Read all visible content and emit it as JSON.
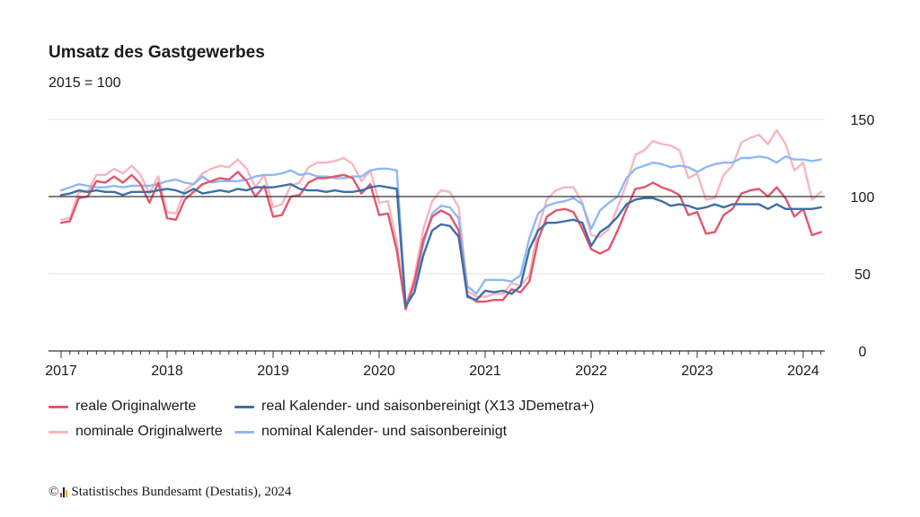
{
  "title": "Umsatz des Gastgewerbes",
  "subtitle": "2015 = 100",
  "footer": {
    "copyright_symbol": "©",
    "text": "Statistisches Bundesamt (Destatis), 2024"
  },
  "legend": [
    {
      "label": "reale Originalwerte",
      "color": "#e3566b"
    },
    {
      "label": "real Kalender- und saisonbereinigt (X13 JDemetra+)",
      "color": "#3d6ea8"
    },
    {
      "label": "nominale Originalwerte",
      "color": "#f8b6bf"
    },
    {
      "label": "nominal Kalender- und saisonbereinigt",
      "color": "#8fb8f5"
    }
  ],
  "chart_data": {
    "type": "line",
    "title": "Umsatz des Gastgewerbes",
    "subtitle": "2015 = 100",
    "x_start": "2017-01",
    "x_frequency": "monthly",
    "x_tick_labels": [
      "2017",
      "2018",
      "2019",
      "2020",
      "2021",
      "2022",
      "2023",
      "2024"
    ],
    "y_ticks": [
      0,
      50,
      100,
      150
    ],
    "ylim": [
      0,
      150
    ],
    "reference_line": 100,
    "grid": true,
    "legend_position": "bottom",
    "series": [
      {
        "name": "reale Originalwerte",
        "color": "#e3566b",
        "values": [
          83,
          84,
          99,
          100,
          110,
          109,
          113,
          109,
          114,
          108,
          96,
          109,
          86,
          85,
          98,
          103,
          108,
          110,
          112,
          111,
          116,
          110,
          100,
          107,
          87,
          88,
          100,
          101,
          109,
          112,
          112,
          113,
          114,
          112,
          102,
          108,
          88,
          89,
          65,
          27,
          45,
          72,
          87,
          91,
          88,
          78,
          36,
          32,
          32,
          33,
          33,
          40,
          38,
          45,
          72,
          87,
          91,
          92,
          90,
          79,
          66,
          63,
          66,
          78,
          92,
          105,
          106,
          109,
          106,
          104,
          101,
          88,
          90,
          76,
          77,
          88,
          92,
          102,
          104,
          105,
          100,
          106,
          99,
          87,
          92,
          75,
          77
        ]
      },
      {
        "name": "real Kalender- und saisonbereinigt (X13 JDemetra+)",
        "color": "#3d6ea8",
        "values": [
          101,
          102,
          104,
          103,
          104,
          103,
          103,
          101,
          103,
          103,
          103,
          104,
          105,
          104,
          102,
          105,
          102,
          103,
          104,
          103,
          105,
          104,
          106,
          106,
          106,
          107,
          108,
          105,
          104,
          104,
          103,
          104,
          103,
          103,
          104,
          106,
          107,
          106,
          105,
          29,
          38,
          62,
          78,
          82,
          81,
          74,
          35,
          33,
          39,
          38,
          39,
          37,
          42,
          66,
          78,
          83,
          83,
          84,
          85,
          83,
          68,
          77,
          81,
          87,
          95,
          98,
          99,
          99,
          97,
          94,
          95,
          94,
          92,
          93,
          95,
          93,
          95,
          95,
          95,
          95,
          92,
          95,
          92,
          92,
          92,
          92,
          93
        ]
      },
      {
        "name": "nominale Originalwerte",
        "color": "#f8b6bf",
        "values": [
          85,
          86,
          103,
          103,
          114,
          114,
          118,
          115,
          120,
          114,
          102,
          113,
          90,
          89,
          104,
          108,
          115,
          118,
          120,
          119,
          124,
          118,
          106,
          114,
          93,
          95,
          107,
          109,
          119,
          122,
          122,
          123,
          125,
          121,
          110,
          117,
          96,
          97,
          70,
          29,
          48,
          79,
          97,
          104,
          103,
          93,
          39,
          35,
          35,
          37,
          37,
          44,
          42,
          49,
          80,
          98,
          104,
          106,
          106,
          96,
          75,
          74,
          79,
          93,
          108,
          127,
          130,
          136,
          134,
          133,
          130,
          112,
          115,
          98,
          99,
          114,
          120,
          135,
          138,
          140,
          134,
          143,
          134,
          117,
          122,
          98,
          103
        ]
      },
      {
        "name": "nominal Kalender- und saisonbereinigt",
        "color": "#8fb8f5",
        "values": [
          104,
          106,
          108,
          107,
          106,
          106,
          107,
          106,
          107,
          107,
          107,
          108,
          110,
          111,
          109,
          108,
          113,
          109,
          110,
          110,
          110,
          111,
          113,
          114,
          114,
          115,
          117,
          114,
          115,
          113,
          113,
          112,
          112,
          113,
          113,
          117,
          118,
          118,
          117,
          30,
          42,
          69,
          89,
          94,
          93,
          86,
          42,
          37,
          46,
          46,
          46,
          45,
          49,
          73,
          89,
          94,
          96,
          97,
          99,
          95,
          79,
          91,
          96,
          100,
          112,
          118,
          120,
          122,
          121,
          119,
          120,
          119,
          116,
          119,
          121,
          122,
          122,
          125,
          125,
          126,
          125,
          122,
          126,
          124,
          124,
          123,
          124
        ]
      }
    ]
  }
}
